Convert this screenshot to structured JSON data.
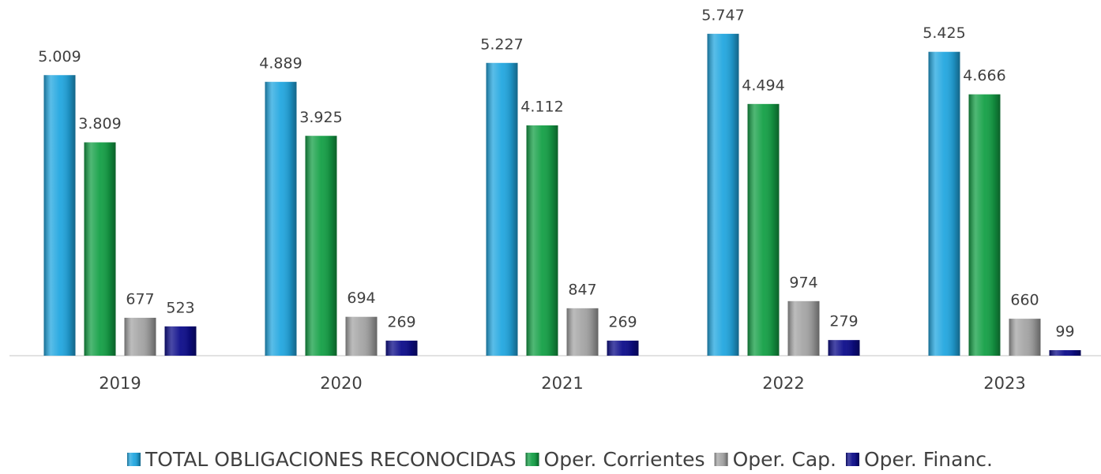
{
  "chart_data": {
    "type": "bar",
    "categories": [
      "2019",
      "2020",
      "2021",
      "2022",
      "2023"
    ],
    "series": [
      {
        "name": "TOTAL OBLIGACIONES RECONOCIDAS",
        "color": "#22a7e0",
        "values": [
          5009,
          4889,
          5227,
          5747,
          5425
        ],
        "value_labels": [
          "5.009",
          "4.889",
          "5.227",
          "5.747",
          "5.425"
        ]
      },
      {
        "name": "Oper. Corrientes",
        "color": "#14a046",
        "values": [
          3809,
          3925,
          4112,
          4494,
          4666
        ],
        "value_labels": [
          "3.809",
          "3.925",
          "4.112",
          "4.494",
          "4.666"
        ]
      },
      {
        "name": "Oper. Cap.",
        "color": "#a5a5a5",
        "values": [
          677,
          694,
          847,
          974,
          660
        ],
        "value_labels": [
          "677",
          "694",
          "847",
          "974",
          "660"
        ]
      },
      {
        "name": "Oper. Financ.",
        "color": "#0c0c8a",
        "values": [
          523,
          269,
          269,
          279,
          99
        ],
        "value_labels": [
          "523",
          "269",
          "269",
          "279",
          "99"
        ]
      }
    ]
  }
}
